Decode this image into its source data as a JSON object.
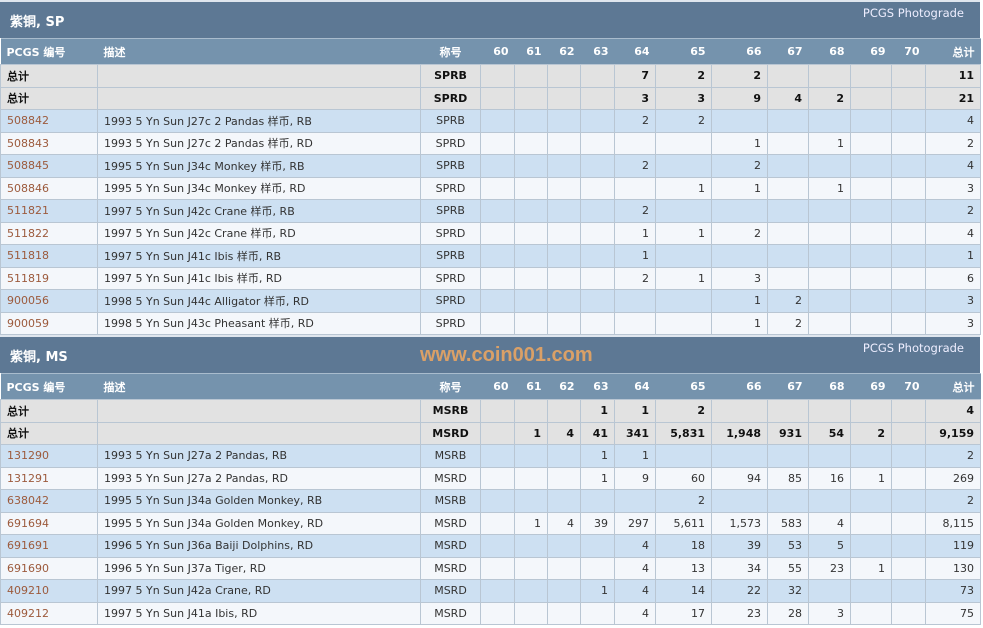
{
  "columns": [
    "PCGS 编号",
    "描述",
    "称号",
    "60",
    "61",
    "62",
    "63",
    "64",
    "65",
    "66",
    "67",
    "68",
    "69",
    "70",
    "总计"
  ],
  "sections": [
    {
      "title": "紫铜, SP",
      "photograde": "PCGS Photograde",
      "rows": [
        {
          "id": "总计",
          "desc": "",
          "des": "SPRB",
          "v": [
            "",
            "",
            "",
            "",
            "7",
            "2",
            "2",
            "",
            "",
            "",
            "",
            "11"
          ],
          "total": true
        },
        {
          "id": "总计",
          "desc": "",
          "des": "SPRD",
          "v": [
            "",
            "",
            "",
            "",
            "3",
            "3",
            "9",
            "4",
            "2",
            "",
            "",
            "21"
          ],
          "total": true
        },
        {
          "id": "508842",
          "desc": "1993 5 Yn Sun J27c 2 Pandas 样币, RB",
          "des": "SPRB",
          "v": [
            "",
            "",
            "",
            "",
            "2",
            "2",
            "",
            "",
            "",
            "",
            "",
            "4"
          ]
        },
        {
          "id": "508843",
          "desc": "1993 5 Yn Sun J27c 2 Pandas 样币, RD",
          "des": "SPRD",
          "v": [
            "",
            "",
            "",
            "",
            "",
            "",
            "1",
            "",
            "1",
            "",
            "",
            "2"
          ]
        },
        {
          "id": "508845",
          "desc": "1995 5 Yn Sun J34c Monkey 样币, RB",
          "des": "SPRB",
          "v": [
            "",
            "",
            "",
            "",
            "2",
            "",
            "2",
            "",
            "",
            "",
            "",
            "4"
          ]
        },
        {
          "id": "508846",
          "desc": "1995 5 Yn Sun J34c Monkey 样币, RD",
          "des": "SPRD",
          "v": [
            "",
            "",
            "",
            "",
            "",
            "1",
            "1",
            "",
            "1",
            "",
            "",
            "3"
          ]
        },
        {
          "id": "511821",
          "desc": "1997 5 Yn Sun J42c Crane 样币, RB",
          "des": "SPRB",
          "v": [
            "",
            "",
            "",
            "",
            "2",
            "",
            "",
            "",
            "",
            "",
            "",
            "2"
          ]
        },
        {
          "id": "511822",
          "desc": "1997 5 Yn Sun J42c Crane 样币, RD",
          "des": "SPRD",
          "v": [
            "",
            "",
            "",
            "",
            "1",
            "1",
            "2",
            "",
            "",
            "",
            "",
            "4"
          ]
        },
        {
          "id": "511818",
          "desc": "1997 5 Yn Sun J41c Ibis 样币, RB",
          "des": "SPRB",
          "v": [
            "",
            "",
            "",
            "",
            "1",
            "",
            "",
            "",
            "",
            "",
            "",
            "1"
          ]
        },
        {
          "id": "511819",
          "desc": "1997 5 Yn Sun J41c Ibis 样币, RD",
          "des": "SPRD",
          "v": [
            "",
            "",
            "",
            "",
            "2",
            "1",
            "3",
            "",
            "",
            "",
            "",
            "6"
          ]
        },
        {
          "id": "900056",
          "desc": "1998 5 Yn Sun J44c Alligator 样币, RD",
          "des": "SPRD",
          "v": [
            "",
            "",
            "",
            "",
            "",
            "",
            "1",
            "2",
            "",
            "",
            "",
            "3"
          ]
        },
        {
          "id": "900059",
          "desc": "1998 5 Yn Sun J43c Pheasant 样币, RD",
          "des": "SPRD",
          "v": [
            "",
            "",
            "",
            "",
            "",
            "",
            "1",
            "2",
            "",
            "",
            "",
            "3"
          ]
        }
      ]
    },
    {
      "title": "紫铜, MS",
      "photograde": "PCGS Photograde",
      "rows": [
        {
          "id": "总计",
          "desc": "",
          "des": "MSRB",
          "v": [
            "",
            "",
            "",
            "1",
            "1",
            "2",
            "",
            "",
            "",
            "",
            "",
            "4"
          ],
          "total": true
        },
        {
          "id": "总计",
          "desc": "",
          "des": "MSRD",
          "v": [
            "",
            "1",
            "4",
            "41",
            "341",
            "5,831",
            "1,948",
            "931",
            "54",
            "2",
            "",
            "9,159"
          ],
          "total": true
        },
        {
          "id": "131290",
          "desc": "1993 5 Yn Sun J27a 2 Pandas, RB",
          "des": "MSRB",
          "v": [
            "",
            "",
            "",
            "1",
            "1",
            "",
            "",
            "",
            "",
            "",
            "",
            "2"
          ]
        },
        {
          "id": "131291",
          "desc": "1993 5 Yn Sun J27a 2 Pandas, RD",
          "des": "MSRD",
          "v": [
            "",
            "",
            "",
            "1",
            "9",
            "60",
            "94",
            "85",
            "16",
            "1",
            "",
            "269"
          ]
        },
        {
          "id": "638042",
          "desc": "1995 5 Yn Sun J34a Golden Monkey, RB",
          "des": "MSRB",
          "v": [
            "",
            "",
            "",
            "",
            "",
            "2",
            "",
            "",
            "",
            "",
            "",
            "2"
          ]
        },
        {
          "id": "691694",
          "desc": "1995 5 Yn Sun J34a Golden Monkey, RD",
          "des": "MSRD",
          "v": [
            "",
            "1",
            "4",
            "39",
            "297",
            "5,611",
            "1,573",
            "583",
            "4",
            "",
            "",
            "8,115"
          ]
        },
        {
          "id": "691691",
          "desc": "1996 5 Yn Sun J36a Baiji Dolphins, RD",
          "des": "MSRD",
          "v": [
            "",
            "",
            "",
            "",
            "4",
            "18",
            "39",
            "53",
            "5",
            "",
            "",
            "119"
          ]
        },
        {
          "id": "691690",
          "desc": "1996 5 Yn Sun J37a Tiger, RD",
          "des": "MSRD",
          "v": [
            "",
            "",
            "",
            "",
            "4",
            "13",
            "34",
            "55",
            "23",
            "1",
            "",
            "130"
          ]
        },
        {
          "id": "409210",
          "desc": "1997 5 Yn Sun J42a Crane, RD",
          "des": "MSRD",
          "v": [
            "",
            "",
            "",
            "1",
            "4",
            "14",
            "22",
            "32",
            "",
            "",
            "",
            "73"
          ]
        },
        {
          "id": "409212",
          "desc": "1997 5 Yn Sun J41a Ibis, RD",
          "des": "MSRD",
          "v": [
            "",
            "",
            "",
            "",
            "4",
            "17",
            "23",
            "28",
            "3",
            "",
            "",
            "75"
          ]
        }
      ]
    }
  ],
  "watermark": "www.coin001.com"
}
